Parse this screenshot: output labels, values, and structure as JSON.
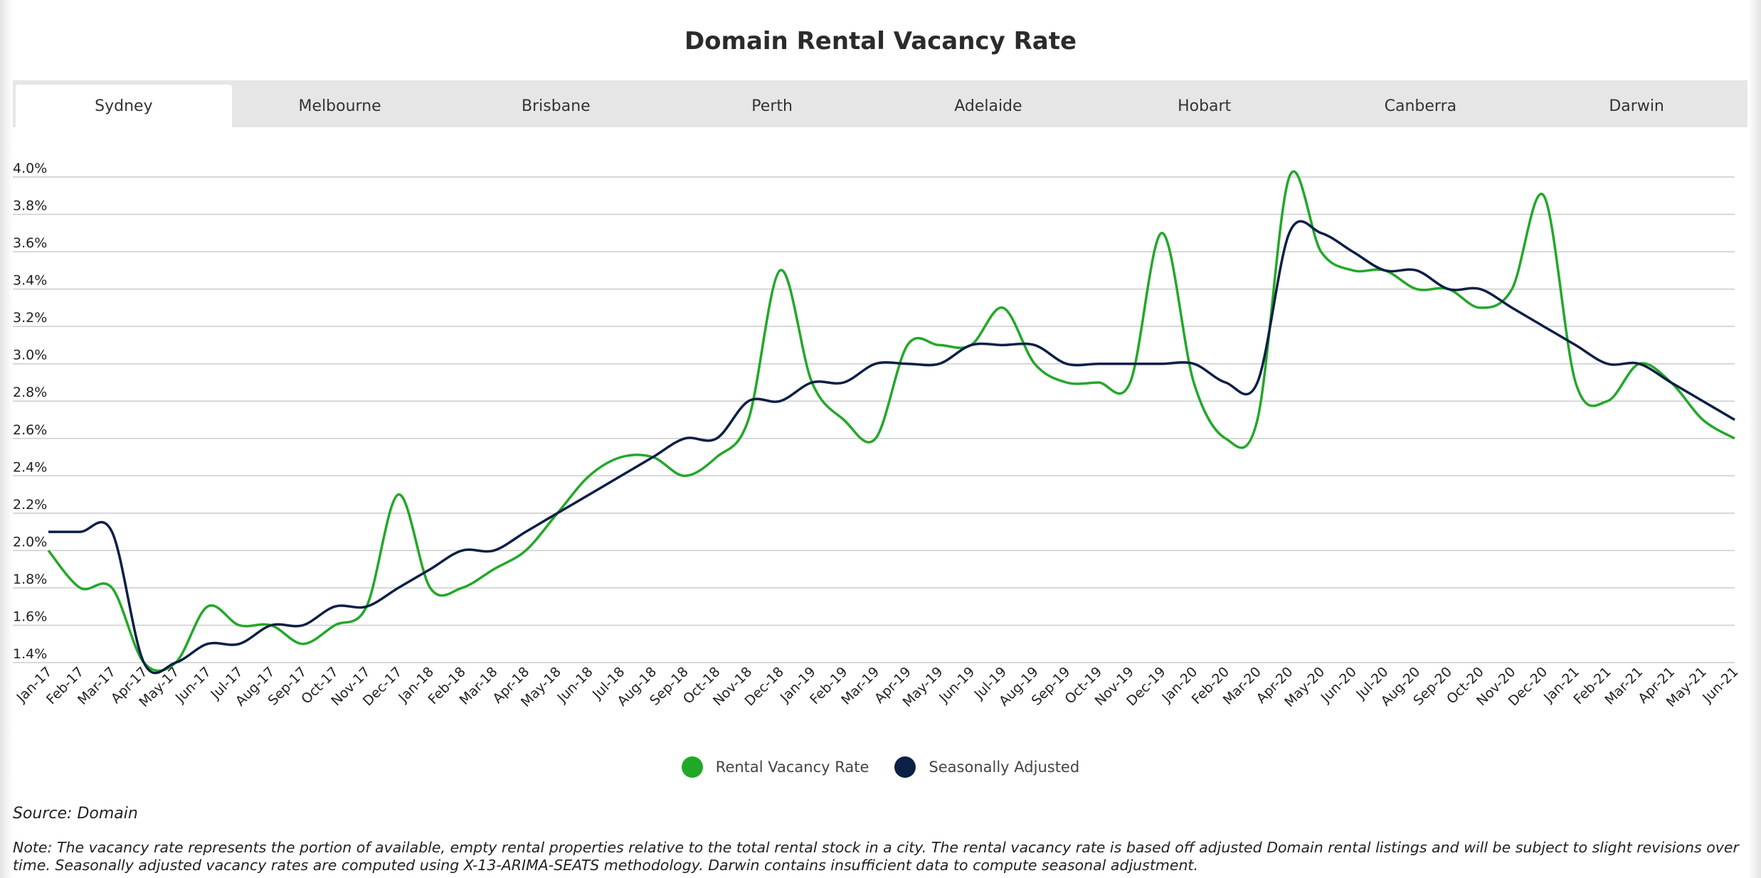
{
  "title": "Domain Rental Vacancy Rate",
  "tabs": [
    {
      "label": "Sydney",
      "active": true
    },
    {
      "label": "Melbourne",
      "active": false
    },
    {
      "label": "Brisbane",
      "active": false
    },
    {
      "label": "Perth",
      "active": false
    },
    {
      "label": "Adelaide",
      "active": false
    },
    {
      "label": "Hobart",
      "active": false
    },
    {
      "label": "Canberra",
      "active": false
    },
    {
      "label": "Darwin",
      "active": false
    }
  ],
  "colors": {
    "rental": "#22a829",
    "seasonal": "#0c1f45",
    "grid": "#cccccc"
  },
  "chart_data": {
    "type": "line",
    "title": "Domain Rental Vacancy Rate",
    "x": [
      "Jan-17",
      "Feb-17",
      "Mar-17",
      "Apr-17",
      "May-17",
      "Jun-17",
      "Jul-17",
      "Aug-17",
      "Sep-17",
      "Oct-17",
      "Nov-17",
      "Dec-17",
      "Jan-18",
      "Feb-18",
      "Mar-18",
      "Apr-18",
      "May-18",
      "Jun-18",
      "Jul-18",
      "Aug-18",
      "Sep-18",
      "Oct-18",
      "Nov-18",
      "Dec-18",
      "Jan-19",
      "Feb-19",
      "Mar-19",
      "Apr-19",
      "May-19",
      "Jun-19",
      "Jul-19",
      "Aug-19",
      "Sep-19",
      "Oct-19",
      "Nov-19",
      "Dec-19",
      "Jan-20",
      "Feb-20",
      "Mar-20",
      "Apr-20",
      "May-20",
      "Jun-20",
      "Jul-20",
      "Aug-20",
      "Sep-20",
      "Oct-20",
      "Nov-20",
      "Dec-20",
      "Jan-21",
      "Feb-21",
      "Mar-21",
      "Apr-21",
      "May-21",
      "Jun-21"
    ],
    "series": [
      {
        "name": "Rental Vacancy Rate",
        "values": [
          2.0,
          1.8,
          1.8,
          1.4,
          1.4,
          1.7,
          1.6,
          1.6,
          1.5,
          1.6,
          1.7,
          2.3,
          1.8,
          1.8,
          1.9,
          2.0,
          2.2,
          2.4,
          2.5,
          2.5,
          2.4,
          2.5,
          2.7,
          3.5,
          2.9,
          2.7,
          2.6,
          3.1,
          3.1,
          3.1,
          3.3,
          3.0,
          2.9,
          2.9,
          2.9,
          3.7,
          2.9,
          2.6,
          2.7,
          4.0,
          3.6,
          3.5,
          3.5,
          3.4,
          3.4,
          3.3,
          3.4,
          3.9,
          2.9,
          2.8,
          3.0,
          2.9,
          2.7,
          2.6
        ]
      },
      {
        "name": "Seasonally Adjusted",
        "values": [
          2.1,
          2.1,
          2.1,
          1.4,
          1.4,
          1.5,
          1.5,
          1.6,
          1.6,
          1.7,
          1.7,
          1.8,
          1.9,
          2.0,
          2.0,
          2.1,
          2.2,
          2.3,
          2.4,
          2.5,
          2.6,
          2.6,
          2.8,
          2.8,
          2.9,
          2.9,
          3.0,
          3.0,
          3.0,
          3.1,
          3.1,
          3.1,
          3.0,
          3.0,
          3.0,
          3.0,
          3.0,
          2.9,
          2.9,
          3.7,
          3.7,
          3.6,
          3.5,
          3.5,
          3.4,
          3.4,
          3.3,
          3.2,
          3.1,
          3.0,
          3.0,
          2.9,
          2.8,
          2.7
        ]
      }
    ],
    "yticks": [
      "1.4%",
      "1.6%",
      "1.8%",
      "2.0%",
      "2.2%",
      "2.4%",
      "2.6%",
      "2.8%",
      "3.0%",
      "3.2%",
      "3.4%",
      "3.6%",
      "3.8%",
      "4.0%"
    ],
    "ylim": [
      1.4,
      4.0
    ],
    "grid": true,
    "legend_position": "bottom-center"
  },
  "legend": [
    {
      "label": "Rental Vacancy Rate"
    },
    {
      "label": "Seasonally Adjusted"
    }
  ],
  "source": "Source: Domain",
  "note": "Note: The vacancy rate represents the portion of available, empty rental properties relative to the total rental stock in a city. The rental vacancy rate is based off adjusted Domain rental listings and will be subject to slight revisions over time. Seasonally adjusted vacancy rates are computed using X-13-ARIMA-SEATS methodology. Darwin contains insufficient data to compute seasonal adjustment."
}
